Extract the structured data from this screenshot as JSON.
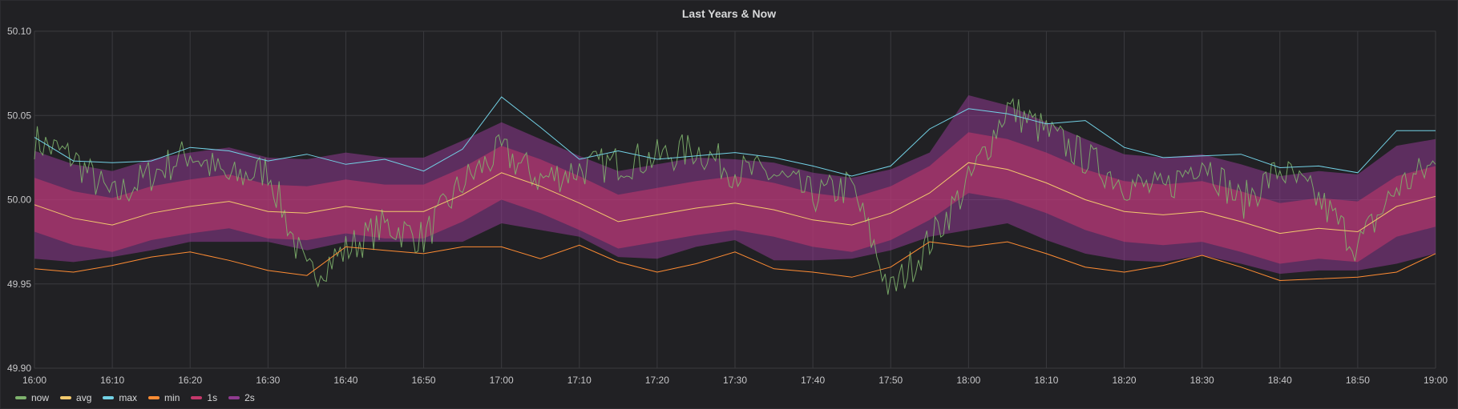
{
  "panel": {
    "title": "Last Years & Now"
  },
  "chart_data": {
    "type": "line",
    "title": "Last Years & Now",
    "xlabel": "",
    "ylabel": "",
    "ylim": [
      49.9,
      50.1
    ],
    "yticks": [
      "50.10",
      "50.05",
      "50.00",
      "49.95",
      "49.90"
    ],
    "yticks_values": [
      50.1,
      50.05,
      50.0,
      49.95,
      49.9
    ],
    "xlim": [
      "16:00",
      "19:00"
    ],
    "xticks": [
      "16:00",
      "16:10",
      "16:20",
      "16:30",
      "16:40",
      "16:50",
      "17:00",
      "17:10",
      "17:20",
      "17:30",
      "17:40",
      "17:50",
      "18:00",
      "18:10",
      "18:20",
      "18:30",
      "18:40",
      "18:50",
      "19:00"
    ],
    "grid": true,
    "legend_position": "bottom-left",
    "x": [
      "16:00",
      "16:05",
      "16:10",
      "16:15",
      "16:20",
      "16:25",
      "16:30",
      "16:35",
      "16:40",
      "16:45",
      "16:50",
      "16:55",
      "17:00",
      "17:05",
      "17:10",
      "17:15",
      "17:20",
      "17:25",
      "17:30",
      "17:35",
      "17:40",
      "17:45",
      "17:50",
      "17:55",
      "18:00",
      "18:05",
      "18:10",
      "18:15",
      "18:20",
      "18:25",
      "18:30",
      "18:35",
      "18:40",
      "18:45",
      "18:50",
      "18:55",
      "19:00"
    ],
    "series": [
      {
        "name": "avg",
        "color": "#f2c96d",
        "values": [
          49.997,
          49.989,
          49.985,
          49.992,
          49.996,
          49.999,
          49.993,
          49.992,
          49.996,
          49.993,
          49.993,
          50.003,
          50.016,
          50.008,
          49.998,
          49.987,
          49.991,
          49.995,
          49.998,
          49.994,
          49.988,
          49.985,
          49.992,
          50.004,
          50.022,
          50.018,
          50.01,
          50.0,
          49.993,
          49.991,
          49.993,
          49.987,
          49.98,
          49.983,
          49.981,
          49.996,
          50.002
        ]
      },
      {
        "name": "max",
        "color": "#73d2e6",
        "values": [
          50.037,
          50.023,
          50.022,
          50.023,
          50.031,
          50.029,
          50.023,
          50.027,
          50.021,
          50.024,
          50.017,
          50.03,
          50.061,
          50.043,
          50.024,
          50.029,
          50.024,
          50.026,
          50.028,
          50.025,
          50.02,
          50.014,
          50.02,
          50.042,
          50.054,
          50.051,
          50.045,
          50.047,
          50.031,
          50.025,
          50.026,
          50.027,
          50.019,
          50.02,
          50.016,
          50.041,
          50.041
        ]
      },
      {
        "name": "min",
        "color": "#ff8c33",
        "values": [
          49.959,
          49.957,
          49.961,
          49.966,
          49.969,
          49.964,
          49.958,
          49.955,
          49.972,
          49.97,
          49.968,
          49.972,
          49.972,
          49.965,
          49.973,
          49.963,
          49.957,
          49.962,
          49.969,
          49.959,
          49.957,
          49.954,
          49.96,
          49.975,
          49.972,
          49.975,
          49.968,
          49.96,
          49.957,
          49.961,
          49.967,
          49.96,
          49.952,
          49.953,
          49.954,
          49.957,
          49.968
        ]
      },
      {
        "name": "1s",
        "color": "#c4386b",
        "upper": [
          50.013,
          50.005,
          50.001,
          50.008,
          50.012,
          50.015,
          50.009,
          50.008,
          50.012,
          50.009,
          50.009,
          50.019,
          50.032,
          50.024,
          50.014,
          50.003,
          50.007,
          50.011,
          50.014,
          50.01,
          50.004,
          50.001,
          50.008,
          50.02,
          50.04,
          50.036,
          50.028,
          50.018,
          50.011,
          50.009,
          50.011,
          50.005,
          49.998,
          50.001,
          49.999,
          50.014,
          50.02
        ],
        "lower": [
          49.981,
          49.973,
          49.969,
          49.976,
          49.98,
          49.983,
          49.977,
          49.976,
          49.98,
          49.977,
          49.977,
          49.987,
          50.0,
          49.992,
          49.982,
          49.971,
          49.975,
          49.979,
          49.982,
          49.978,
          49.972,
          49.969,
          49.976,
          49.988,
          50.004,
          50.0,
          49.992,
          49.982,
          49.975,
          49.973,
          49.975,
          49.969,
          49.962,
          49.965,
          49.963,
          49.978,
          49.984
        ]
      },
      {
        "name": "2s",
        "color": "#8f3b8f",
        "upper": [
          50.029,
          50.021,
          50.017,
          50.024,
          50.028,
          50.031,
          50.025,
          50.024,
          50.028,
          50.025,
          50.025,
          50.035,
          50.046,
          50.036,
          50.026,
          50.017,
          50.021,
          50.025,
          50.024,
          50.022,
          50.016,
          50.013,
          50.018,
          50.028,
          50.062,
          50.056,
          50.046,
          50.036,
          50.027,
          50.025,
          50.027,
          50.021,
          50.014,
          50.017,
          50.015,
          50.032,
          50.036
        ],
        "lower": [
          49.965,
          49.963,
          49.966,
          49.97,
          49.975,
          49.975,
          49.975,
          49.97,
          49.975,
          49.975,
          49.975,
          49.975,
          49.986,
          49.982,
          49.978,
          49.966,
          49.965,
          49.972,
          49.976,
          49.964,
          49.964,
          49.965,
          49.97,
          49.978,
          49.982,
          49.986,
          49.976,
          49.968,
          49.964,
          49.963,
          49.967,
          49.962,
          49.956,
          49.958,
          49.958,
          49.962,
          49.968
        ]
      },
      {
        "name": "now",
        "color": "#7eb26d",
        "values": [
          50.035,
          50.025,
          50.001,
          50.015,
          50.028,
          50.012,
          50.018,
          49.955,
          49.97,
          49.985,
          49.977,
          50.01,
          50.029,
          50.012,
          50.018,
          50.022,
          50.025,
          50.03,
          50.017,
          50.015,
          50.002,
          50.008,
          49.945,
          49.975,
          50.01,
          50.055,
          50.04,
          50.025,
          50.01,
          50.005,
          50.025,
          49.998,
          50.018,
          50.0,
          49.972,
          50.007,
          50.021
        ]
      }
    ]
  }
}
